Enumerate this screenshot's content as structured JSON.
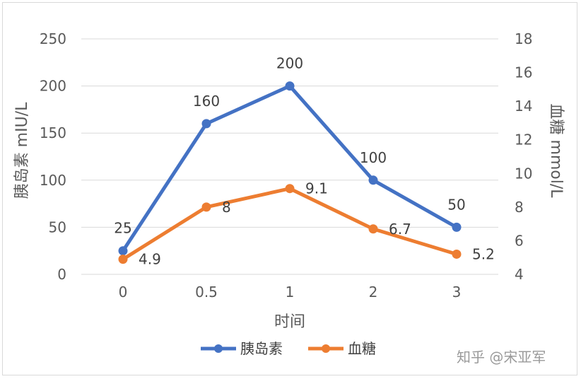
{
  "chart_data": {
    "type": "line",
    "categories": [
      "0",
      "0.5",
      "1",
      "2",
      "3"
    ],
    "xlabel": "时间",
    "ylabel": "胰岛素 mIU/L",
    "y2label": "血糖 mmol/L",
    "ylim": [
      0,
      250
    ],
    "yticks": [
      "0",
      "50",
      "100",
      "150",
      "200",
      "250"
    ],
    "y2lim": [
      4,
      18
    ],
    "y2ticks": [
      "4",
      "6",
      "8",
      "10",
      "12",
      "14",
      "16",
      "18"
    ],
    "grid": true,
    "legend_position": "bottom",
    "series": [
      {
        "name": "胰岛素",
        "axis": "left",
        "color": "#4472c4",
        "values": [
          25,
          160,
          200,
          100,
          50
        ],
        "labels": [
          "25",
          "160",
          "200",
          "100",
          "50"
        ]
      },
      {
        "name": "血糖",
        "axis": "right",
        "color": "#ed7d31",
        "values": [
          4.9,
          8,
          9.1,
          6.7,
          5.2
        ],
        "labels": [
          "4.9",
          "8",
          "9.1",
          "6.7",
          "5.2"
        ]
      }
    ]
  },
  "watermark": "知乎 @宋亚军"
}
